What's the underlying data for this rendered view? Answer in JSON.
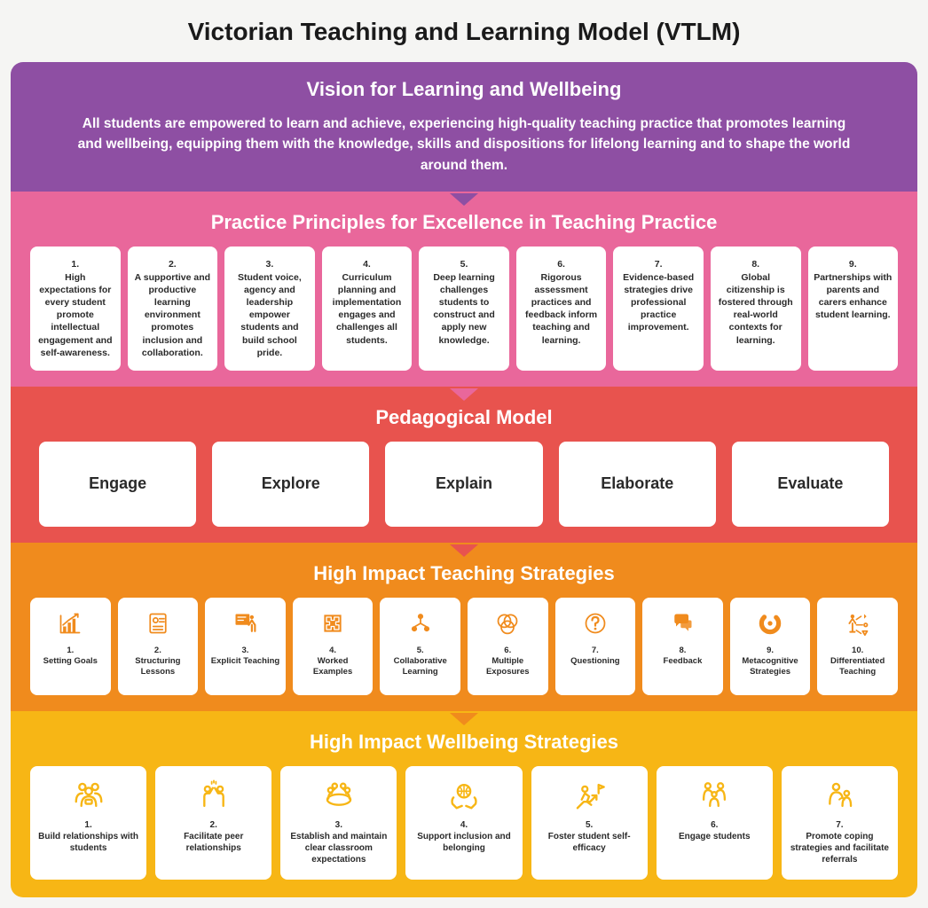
{
  "page_title": "Victorian Teaching and Learning Model (VTLM)",
  "colors": {
    "bg": "#f5f5f3",
    "vision": "#8e4fa3",
    "principles": "#e9679b",
    "pedagogical": "#e8534e",
    "hits": "#f08b1d",
    "hiws": "#f7b615",
    "card_bg": "#ffffff",
    "text_dark": "#2a2a2a"
  },
  "vision": {
    "title": "Vision for Learning and Wellbeing",
    "body": "All students are empowered to learn and achieve, experiencing high-quality teaching practice that promotes learning and wellbeing, equipping them with the knowledge, skills and dispositions for lifelong learning and to shape the world around them."
  },
  "principles": {
    "title": "Practice Principles for Excellence in Teaching Practice",
    "items": [
      {
        "n": "1.",
        "t": "High expectations for every student promote intellectual engagement and self-awareness."
      },
      {
        "n": "2.",
        "t": "A supportive and productive learning environment promotes inclusion and collaboration."
      },
      {
        "n": "3.",
        "t": "Student voice, agency and leadership empower students and build school pride."
      },
      {
        "n": "4.",
        "t": "Curriculum planning and implementation engages and challenges all students."
      },
      {
        "n": "5.",
        "t": "Deep learning challenges students to construct and apply new knowledge."
      },
      {
        "n": "6.",
        "t": "Rigorous assessment practices and feedback inform teaching and learning."
      },
      {
        "n": "7.",
        "t": "Evidence-based strategies drive professional practice improvement."
      },
      {
        "n": "8.",
        "t": "Global citizenship is fostered through real-world contexts for learning."
      },
      {
        "n": "9.",
        "t": "Partnerships with parents and carers enhance student learning."
      }
    ]
  },
  "pedagogical": {
    "title": "Pedagogical Model",
    "items": [
      "Engage",
      "Explore",
      "Explain",
      "Elaborate",
      "Evaluate"
    ]
  },
  "hits": {
    "title": "High Impact Teaching Strategies",
    "icon_color": "#f08b1d",
    "items": [
      {
        "n": "1.",
        "t": "Setting Goals",
        "icon": "goals"
      },
      {
        "n": "2.",
        "t": "Structuring Lessons",
        "icon": "lesson"
      },
      {
        "n": "3.",
        "t": "Explicit Teaching",
        "icon": "teacher"
      },
      {
        "n": "4.",
        "t": "Worked Examples",
        "icon": "puzzle"
      },
      {
        "n": "5.",
        "t": "Collaborative Learning",
        "icon": "nodes"
      },
      {
        "n": "6.",
        "t": "Multiple Exposures",
        "icon": "venn"
      },
      {
        "n": "7.",
        "t": "Questioning",
        "icon": "question"
      },
      {
        "n": "8.",
        "t": "Feedback",
        "icon": "chat"
      },
      {
        "n": "9.",
        "t": "Metacognitive Strategies",
        "icon": "donut"
      },
      {
        "n": "10.",
        "t": "Differentiated Teaching",
        "icon": "diff"
      }
    ]
  },
  "hiws": {
    "title": "High Impact Wellbeing Strategies",
    "icon_color": "#f7b615",
    "items": [
      {
        "n": "1.",
        "t": "Build relationships with students",
        "icon": "group3"
      },
      {
        "n": "2.",
        "t": "Facilitate peer relationships",
        "icon": "highfive"
      },
      {
        "n": "3.",
        "t": "Establish and maintain clear classroom expectations",
        "icon": "roundtable"
      },
      {
        "n": "4.",
        "t": "Support inclusion and belonging",
        "icon": "hands-globe"
      },
      {
        "n": "5.",
        "t": "Foster student self-efficacy",
        "icon": "climb"
      },
      {
        "n": "6.",
        "t": "Engage students",
        "icon": "family"
      },
      {
        "n": "7.",
        "t": "Promote coping strategies and facilitate referrals",
        "icon": "support"
      }
    ]
  }
}
